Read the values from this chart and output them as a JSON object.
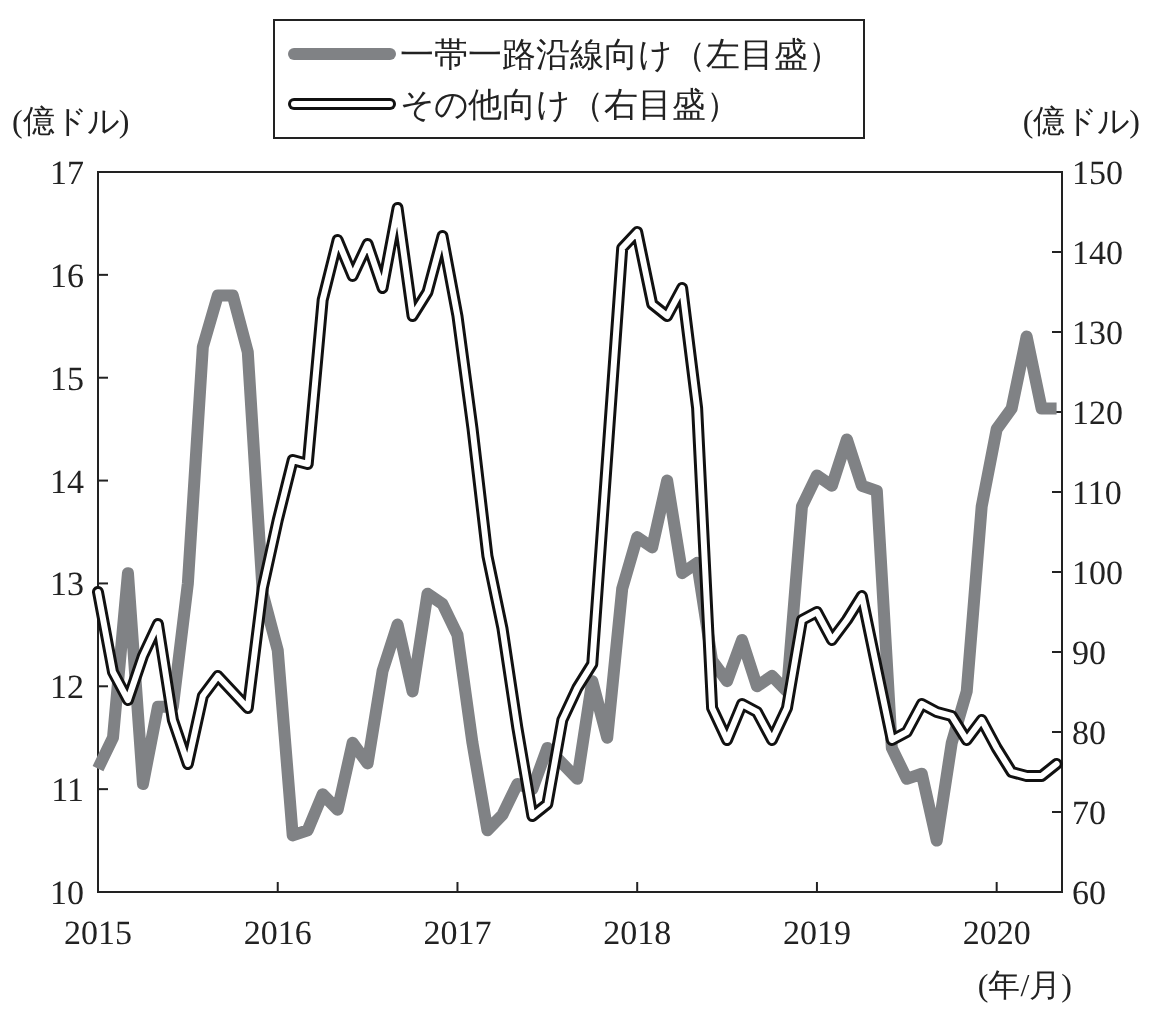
{
  "chart_data": {
    "type": "line",
    "xlabel": "(年/月)",
    "ylabel": "(億ドル)",
    "y2label": "(億ドル)",
    "legend": "top",
    "grid": false,
    "line_style": "solid",
    "x": [
      "2015-01",
      "2015-02",
      "2015-03",
      "2015-04",
      "2015-05",
      "2015-06",
      "2015-07",
      "2015-08",
      "2015-09",
      "2015-10",
      "2015-11",
      "2015-12",
      "2016-01",
      "2016-02",
      "2016-03",
      "2016-04",
      "2016-05",
      "2016-06",
      "2016-07",
      "2016-08",
      "2016-09",
      "2016-10",
      "2016-11",
      "2016-12",
      "2017-01",
      "2017-02",
      "2017-03",
      "2017-04",
      "2017-05",
      "2017-06",
      "2017-07",
      "2017-08",
      "2017-09",
      "2017-10",
      "2017-11",
      "2017-12",
      "2018-01",
      "2018-02",
      "2018-03",
      "2018-04",
      "2018-05",
      "2018-06",
      "2018-07",
      "2018-08",
      "2018-09",
      "2018-10",
      "2018-11",
      "2018-12",
      "2019-01",
      "2019-02",
      "2019-03",
      "2019-04",
      "2019-05",
      "2019-06",
      "2019-07",
      "2019-08",
      "2019-09",
      "2019-10",
      "2019-11",
      "2019-12",
      "2020-01",
      "2020-02",
      "2020-03",
      "2020-04",
      "2020-05"
    ],
    "xlim": [
      "2015",
      "2020-05-12"
    ],
    "xticks": [
      "2015",
      "2016",
      "2017",
      "2018",
      "2019",
      "2020"
    ],
    "ylim": [
      10,
      17
    ],
    "yticks": [
      10,
      11,
      12,
      13,
      14,
      15,
      16,
      17
    ],
    "y2lim": [
      60,
      150
    ],
    "y2ticks": [
      60,
      70,
      80,
      90,
      100,
      110,
      120,
      130,
      140,
      150
    ],
    "series": [
      {
        "name": "一帯一路沿線向け（左目盛）",
        "color": "#808285",
        "values": [
          11.2,
          11.5,
          13.1,
          11.05,
          11.8,
          11.8,
          13.0,
          15.3,
          15.8,
          15.8,
          15.25,
          12.9,
          12.35,
          10.55,
          10.6,
          10.95,
          10.8,
          11.45,
          11.25,
          12.15,
          12.6,
          11.95,
          12.9,
          12.8,
          12.5,
          11.45,
          10.6,
          10.75,
          11.05,
          11.0,
          11.4,
          11.25,
          11.1,
          12.05,
          11.5,
          12.95,
          13.45,
          13.35,
          14.0,
          13.1,
          13.2,
          12.25,
          12.05,
          12.45,
          12.0,
          12.1,
          11.95,
          13.75,
          14.05,
          13.95,
          14.4,
          13.95,
          13.9,
          11.4,
          11.1,
          11.15,
          10.5,
          11.45,
          11.95,
          13.75,
          14.5,
          14.7,
          15.4,
          14.7,
          14.7
        ]
      },
      {
        "name": "その他向け（右目盛）",
        "color": "#ffffff",
        "axis": "y2",
        "values": [
          97.5,
          87.5,
          84,
          89.5,
          93.5,
          81.5,
          76,
          84.5,
          87,
          85,
          83,
          98,
          106.5,
          114,
          113.5,
          134,
          141.5,
          137,
          141,
          135.5,
          145.5,
          132,
          135,
          142,
          132,
          118,
          102,
          93,
          80.5,
          69.5,
          71,
          81.5,
          85.5,
          88.5,
          114.5,
          140.5,
          142.5,
          133.5,
          132,
          135.5,
          120.5,
          83,
          79,
          83.5,
          82.5,
          79,
          83,
          94,
          95,
          91.5,
          94,
          97,
          88,
          79,
          80,
          83.5,
          82.5,
          82,
          79,
          81.5,
          78,
          75,
          74.5,
          74.5,
          76
        ]
      }
    ]
  }
}
